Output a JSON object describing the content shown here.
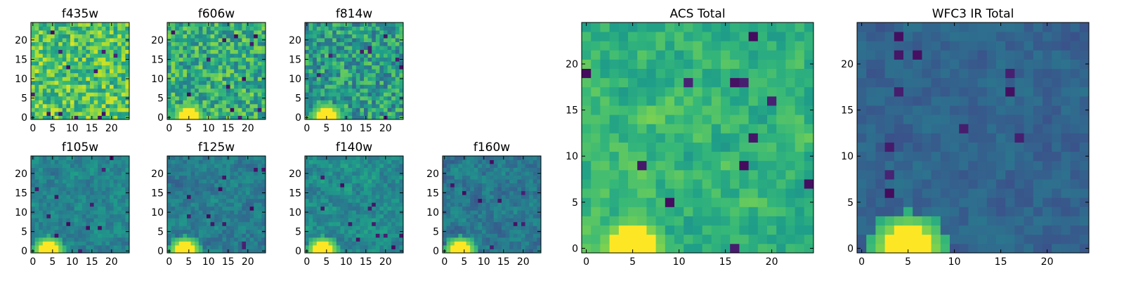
{
  "chart_data": [
    {
      "type": "heatmap",
      "title": "f435w",
      "grid": [
        25,
        25
      ],
      "colormap": "viridis",
      "xlim": [
        0,
        24
      ],
      "ylim": [
        0,
        24
      ],
      "xticks": [
        0,
        5,
        10,
        15,
        20
      ],
      "yticks": [
        0,
        5,
        10,
        15,
        20
      ],
      "bright_spot": null,
      "mean_level": 0.72,
      "spread": 0.22
    },
    {
      "type": "heatmap",
      "title": "f606w",
      "grid": [
        25,
        25
      ],
      "colormap": "viridis",
      "xlim": [
        0,
        24
      ],
      "ylim": [
        0,
        24
      ],
      "xticks": [
        0,
        5,
        10,
        15,
        20
      ],
      "yticks": [
        0,
        5,
        10,
        15,
        20
      ],
      "bright_spot": [
        5,
        0
      ],
      "mean_level": 0.62,
      "spread": 0.22
    },
    {
      "type": "heatmap",
      "title": "f814w",
      "grid": [
        25,
        25
      ],
      "colormap": "viridis",
      "xlim": [
        0,
        24
      ],
      "ylim": [
        0,
        24
      ],
      "xticks": [
        0,
        5,
        10,
        15,
        20
      ],
      "yticks": [
        0,
        5,
        10,
        15,
        20
      ],
      "bright_spot": [
        5,
        0
      ],
      "mean_level": 0.55,
      "spread": 0.22
    },
    {
      "type": "heatmap",
      "title": "f105w",
      "grid": [
        25,
        25
      ],
      "colormap": "viridis",
      "xlim": [
        0,
        24
      ],
      "ylim": [
        0,
        24
      ],
      "xticks": [
        0,
        5,
        10,
        15,
        20
      ],
      "yticks": [
        0,
        5,
        10,
        15,
        20
      ],
      "bright_spot": [
        4,
        0
      ],
      "mean_level": 0.45,
      "spread": 0.16
    },
    {
      "type": "heatmap",
      "title": "f125w",
      "grid": [
        25,
        25
      ],
      "colormap": "viridis",
      "xlim": [
        0,
        24
      ],
      "ylim": [
        0,
        24
      ],
      "xticks": [
        0,
        5,
        10,
        15,
        20
      ],
      "yticks": [
        0,
        5,
        10,
        15,
        20
      ],
      "bright_spot": [
        4,
        0
      ],
      "mean_level": 0.42,
      "spread": 0.16
    },
    {
      "type": "heatmap",
      "title": "f140w",
      "grid": [
        25,
        25
      ],
      "colormap": "viridis",
      "xlim": [
        0,
        24
      ],
      "ylim": [
        0,
        24
      ],
      "xticks": [
        0,
        5,
        10,
        15,
        20
      ],
      "yticks": [
        0,
        5,
        10,
        15,
        20
      ],
      "bright_spot": [
        4,
        0
      ],
      "mean_level": 0.48,
      "spread": 0.18
    },
    {
      "type": "heatmap",
      "title": "f160w",
      "grid": [
        25,
        25
      ],
      "colormap": "viridis",
      "xlim": [
        0,
        24
      ],
      "ylim": [
        0,
        24
      ],
      "xticks": [
        0,
        5,
        10,
        15,
        20
      ],
      "yticks": [
        0,
        5,
        10,
        15,
        20
      ],
      "bright_spot": [
        4,
        0
      ],
      "mean_level": 0.4,
      "spread": 0.17
    },
    {
      "type": "heatmap",
      "title": "ACS Total",
      "grid": [
        25,
        25
      ],
      "colormap": "viridis",
      "xlim": [
        0,
        24
      ],
      "ylim": [
        0,
        24
      ],
      "xticks": [
        0,
        5,
        10,
        15,
        20
      ],
      "yticks": [
        0,
        5,
        10,
        15,
        20
      ],
      "bright_spot": [
        5,
        0
      ],
      "mean_level": 0.65,
      "spread": 0.18
    },
    {
      "type": "heatmap",
      "title": "WFC3 IR Total",
      "grid": [
        25,
        25
      ],
      "colormap": "viridis",
      "xlim": [
        0,
        24
      ],
      "ylim": [
        0,
        24
      ],
      "xticks": [
        0,
        5,
        10,
        15,
        20
      ],
      "yticks": [
        0,
        5,
        10,
        15,
        20
      ],
      "bright_spot": [
        5,
        0
      ],
      "mean_level": 0.32,
      "spread": 0.1
    }
  ]
}
